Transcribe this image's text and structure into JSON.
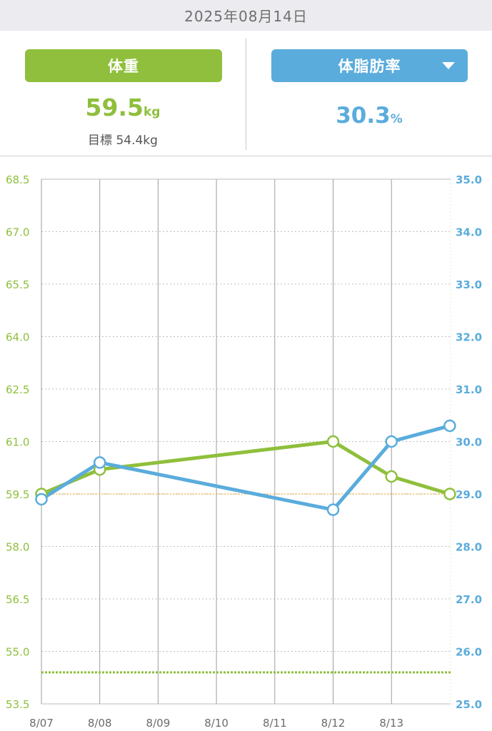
{
  "header": {
    "date": "2025年08月14日"
  },
  "weight_panel": {
    "label": "体重",
    "value": "59.5",
    "unit": "kg",
    "goal_label": "目標",
    "goal_value": "54.4kg"
  },
  "fat_panel": {
    "label": "体脂肪率",
    "value": "30.3",
    "unit": "%",
    "dropdown_icon": "caret-down-icon"
  },
  "colors": {
    "weight": "#8fbf3c",
    "fat": "#5aacdc",
    "goal": "#f0b040"
  },
  "chart_data": {
    "type": "line",
    "x_labels": [
      "8/07",
      "8/08",
      "8/09",
      "8/10",
      "8/11",
      "8/12",
      "8/13"
    ],
    "left_axis": {
      "ticks": [
        "68.5",
        "67.0",
        "65.5",
        "64.0",
        "62.5",
        "61.0",
        "59.5",
        "58.0",
        "56.5",
        "55.0",
        "53.5"
      ],
      "range": [
        53.5,
        68.5
      ]
    },
    "right_axis": {
      "ticks": [
        "35.0",
        "34.0",
        "33.0",
        "32.0",
        "31.0",
        "30.0",
        "29.0",
        "28.0",
        "27.0",
        "26.0",
        "25.0"
      ],
      "range": [
        25.0,
        35.0
      ]
    },
    "series": [
      {
        "axis": "left",
        "points": [
          [
            0,
            59.5
          ],
          [
            1,
            60.2
          ],
          [
            5,
            61.0
          ],
          [
            6,
            60.0
          ],
          [
            7,
            59.5
          ]
        ]
      },
      {
        "axis": "right",
        "points": [
          [
            0,
            28.9
          ],
          [
            1,
            29.6
          ],
          [
            5,
            28.7
          ],
          [
            6,
            30.0
          ],
          [
            7,
            30.3
          ]
        ]
      }
    ],
    "reference_lines": [
      {
        "axis": "left",
        "value": 59.5,
        "style": "dotted"
      },
      {
        "axis": "left",
        "value": 54.4,
        "style": "dotted"
      }
    ]
  }
}
